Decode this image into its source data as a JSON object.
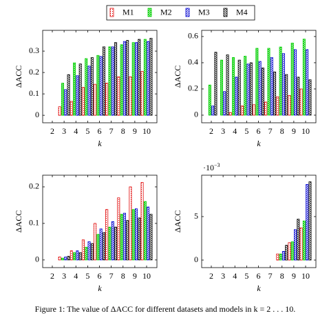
{
  "caption": "Figure 1: The value of ΔACC for different datasets and models in k = 2 . . . 10.",
  "chart_data": [
    {
      "type": "bar",
      "xlabel": "k",
      "ylabel": "ΔACC",
      "categories": [
        "2",
        "3",
        "4",
        "5",
        "6",
        "7",
        "8",
        "9",
        "10"
      ],
      "ylim": [
        -0.035,
        0.397
      ],
      "yticks": [
        0,
        0.1,
        0.2,
        0.3
      ],
      "series": [
        {
          "name": "M1",
          "color": "#e00000",
          "values": [
            0,
            0.04,
            0.065,
            0.13,
            0.145,
            0.15,
            0.18,
            0.18,
            0.205
          ]
        },
        {
          "name": "M2",
          "color": "#00d000",
          "values": [
            0,
            0.15,
            0.245,
            0.265,
            0.28,
            0.32,
            0.33,
            0.34,
            0.355
          ]
        },
        {
          "name": "M3",
          "color": "#0000d0",
          "values": [
            0,
            0.12,
            0.185,
            0.23,
            0.275,
            0.32,
            0.345,
            0.34,
            0.345
          ]
        },
        {
          "name": "M4",
          "color": "#000000",
          "values": [
            0,
            0.19,
            0.24,
            0.27,
            0.32,
            0.34,
            0.35,
            0.355,
            0.36
          ]
        }
      ]
    },
    {
      "type": "bar",
      "xlabel": "k",
      "ylabel": "ΔACC",
      "categories": [
        "2",
        "3",
        "4",
        "5",
        "6",
        "7",
        "8",
        "9",
        "10"
      ],
      "ylim": [
        -0.058,
        0.647
      ],
      "yticks": [
        0,
        0.2,
        0.4,
        0.6
      ],
      "series": [
        {
          "name": "M1",
          "color": "#e00000",
          "values": [
            0,
            0,
            0.02,
            0.07,
            0.08,
            0.1,
            0.14,
            0.15,
            0.2
          ]
        },
        {
          "name": "M2",
          "color": "#00d000",
          "values": [
            0.23,
            0.42,
            0.44,
            0.45,
            0.51,
            0.51,
            0.52,
            0.55,
            0.58
          ]
        },
        {
          "name": "M3",
          "color": "#0000d0",
          "values": [
            0.07,
            0.18,
            0.29,
            0.39,
            0.41,
            0.44,
            0.47,
            0.5,
            0.5
          ]
        },
        {
          "name": "M4",
          "color": "#000000",
          "values": [
            0.48,
            0.46,
            0.42,
            0.4,
            0.36,
            0.33,
            0.31,
            0.29,
            0.27
          ]
        }
      ]
    },
    {
      "type": "bar",
      "xlabel": "k",
      "ylabel": "ΔACC",
      "categories": [
        "2",
        "3",
        "4",
        "5",
        "6",
        "7",
        "8",
        "9",
        "10"
      ],
      "ylim": [
        -0.021,
        0.232
      ],
      "yticks": [
        0,
        0.1,
        0.2
      ],
      "series": [
        {
          "name": "M1",
          "color": "#e00000",
          "values": [
            0,
            0.008,
            0.025,
            0.055,
            0.1,
            0.138,
            0.17,
            0.2,
            0.212
          ]
        },
        {
          "name": "M2",
          "color": "#00d000",
          "values": [
            0,
            0.005,
            0.02,
            0.035,
            0.07,
            0.09,
            0.125,
            0.138,
            0.16
          ]
        },
        {
          "name": "M3",
          "color": "#0000d0",
          "values": [
            0,
            0.008,
            0.025,
            0.05,
            0.085,
            0.105,
            0.128,
            0.14,
            0.145
          ]
        },
        {
          "name": "M4",
          "color": "#000000",
          "values": [
            0,
            0.01,
            0.02,
            0.045,
            0.075,
            0.09,
            0.108,
            0.115,
            0.125
          ]
        }
      ]
    },
    {
      "type": "bar",
      "xlabel": "k",
      "ylabel": "ΔACC",
      "exponent": {
        "base": "·10",
        "power": "−3"
      },
      "categories": [
        "2",
        "3",
        "4",
        "5",
        "6",
        "7",
        "8",
        "9",
        "10"
      ],
      "ylim": [
        -0.87,
        9.76
      ],
      "yticks": [
        0,
        5
      ],
      "series": [
        {
          "name": "M1",
          "color": "#e00000",
          "values": [
            0,
            0,
            0,
            0,
            0,
            0,
            0.7,
            2.0,
            3.7
          ]
        },
        {
          "name": "M2",
          "color": "#00d000",
          "values": [
            0,
            0,
            0,
            0,
            0,
            0,
            0.7,
            2.1,
            4.5
          ]
        },
        {
          "name": "M3",
          "color": "#0000d0",
          "values": [
            0,
            0,
            0,
            0,
            0,
            0,
            1.0,
            3.5,
            8.7
          ]
        },
        {
          "name": "M4",
          "color": "#000000",
          "values": [
            0,
            0,
            0,
            0,
            0,
            0,
            1.7,
            4.7,
            9.0
          ]
        }
      ]
    }
  ]
}
